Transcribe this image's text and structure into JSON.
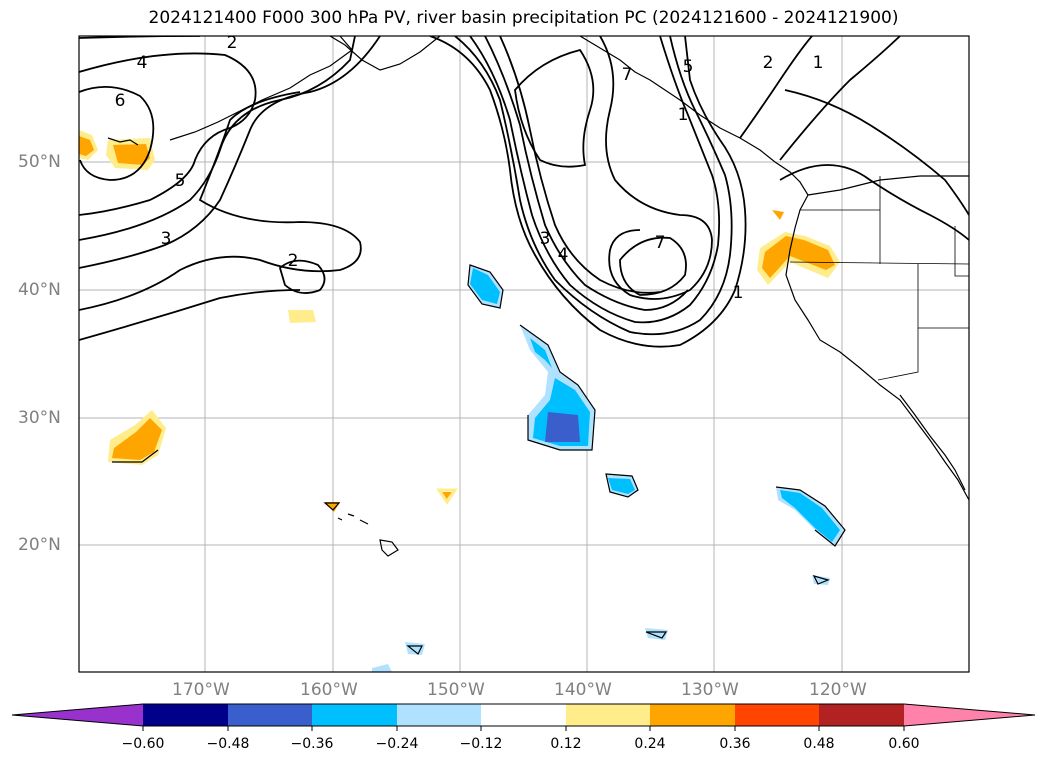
{
  "title": "2024121400 F000 300 hPa PV, river basin precipitation PC (2024121600 - 2024121900)",
  "map": {
    "lat_ticks": [
      {
        "label": "50°N"
      },
      {
        "label": "40°N"
      },
      {
        "label": "30°N"
      },
      {
        "label": "20°N"
      }
    ],
    "lon_ticks": [
      {
        "label": "170°W"
      },
      {
        "label": "160°W"
      },
      {
        "label": "150°W"
      },
      {
        "label": "140°W"
      },
      {
        "label": "130°W"
      },
      {
        "label": "120°W"
      }
    ],
    "contour_labels": [
      "2",
      "4",
      "6",
      "5",
      "3",
      "2",
      "3",
      "4",
      "7",
      "1",
      "1",
      "2",
      "1",
      "7",
      "5"
    ]
  },
  "colorbar": {
    "colors": [
      "#9932cc",
      "#00008b",
      "#3a5fcd",
      "#00bfff",
      "#b0e2ff",
      "#ffffff",
      "#ffec8b",
      "#ffa500",
      "#ff4500",
      "#b22222",
      "#ff82ab"
    ],
    "labels": [
      "−0.60",
      "−0.48",
      "−0.36",
      "−0.24",
      "−0.12",
      "0.12",
      "0.24",
      "0.36",
      "0.48",
      "0.60"
    ]
  }
}
